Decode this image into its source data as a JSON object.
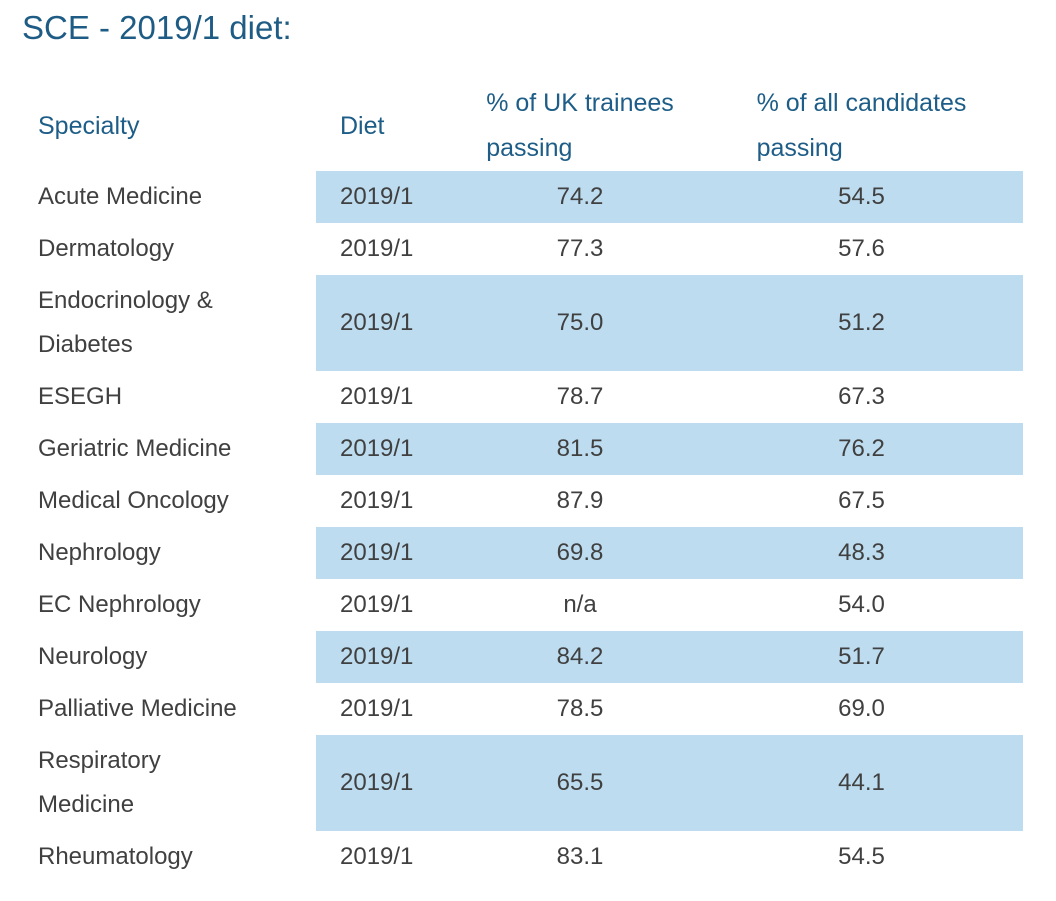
{
  "page": {
    "title": "SCE - 2019/1 diet:"
  },
  "colors": {
    "heading_text": "#1d5d87",
    "title_text": "#1e5c85",
    "body_text": "#404040",
    "row_stripe": "#bddcf0"
  },
  "table": {
    "columns": {
      "specialty": "Specialty",
      "diet": "Diet",
      "uk_trainees": "% of UK trainees\npassing",
      "all_candidates": "% of all candidates\npassing"
    },
    "rows": [
      {
        "specialty": "Acute Medicine",
        "diet": "2019/1",
        "uk": "74.2",
        "all": "54.5"
      },
      {
        "specialty": "Dermatology",
        "diet": "2019/1",
        "uk": "77.3",
        "all": "57.6"
      },
      {
        "specialty": "Endocrinology &\nDiabetes",
        "diet": "2019/1",
        "uk": "75.0",
        "all": "51.2"
      },
      {
        "specialty": "ESEGH",
        "diet": "2019/1",
        "uk": "78.7",
        "all": "67.3"
      },
      {
        "specialty": "Geriatric Medicine",
        "diet": "2019/1",
        "uk": "81.5",
        "all": "76.2"
      },
      {
        "specialty": "Medical Oncology",
        "diet": "2019/1",
        "uk": "87.9",
        "all": "67.5"
      },
      {
        "specialty": "Nephrology",
        "diet": "2019/1",
        "uk": "69.8",
        "all": "48.3"
      },
      {
        "specialty": "EC Nephrology",
        "diet": "2019/1",
        "uk": "n/a",
        "all": "54.0"
      },
      {
        "specialty": "Neurology",
        "diet": "2019/1",
        "uk": "84.2",
        "all": "51.7"
      },
      {
        "specialty": "Palliative Medicine",
        "diet": "2019/1",
        "uk": "78.5",
        "all": "69.0"
      },
      {
        "specialty": "Respiratory\nMedicine",
        "diet": "2019/1",
        "uk": "65.5",
        "all": "44.1"
      },
      {
        "specialty": "Rheumatology",
        "diet": "2019/1",
        "uk": "83.1",
        "all": "54.5"
      }
    ]
  }
}
